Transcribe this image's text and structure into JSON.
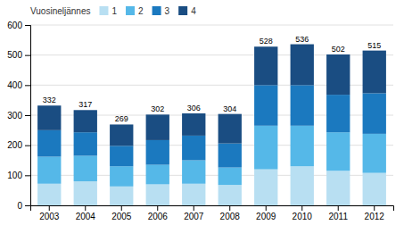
{
  "chart_data": {
    "type": "bar",
    "stacked": true,
    "categories": [
      "2003",
      "2004",
      "2005",
      "2006",
      "2007",
      "2008",
      "2009",
      "2010",
      "2011",
      "2012"
    ],
    "series": [
      {
        "name": "1",
        "color": "#b8dff2",
        "values": [
          72,
          80,
          63,
          70,
          72,
          68,
          120,
          130,
          115,
          108
        ]
      },
      {
        "name": "2",
        "color": "#55b8e8",
        "values": [
          90,
          85,
          67,
          65,
          78,
          58,
          145,
          135,
          128,
          130
        ]
      },
      {
        "name": "3",
        "color": "#1b79bf",
        "values": [
          88,
          78,
          68,
          82,
          82,
          80,
          135,
          135,
          125,
          135
        ]
      },
      {
        "name": "4",
        "color": "#1a4d82",
        "values": [
          82,
          74,
          71,
          85,
          74,
          98,
          128,
          136,
          134,
          142
        ]
      }
    ],
    "totals": [
      332,
      317,
      269,
      302,
      306,
      304,
      528,
      536,
      502,
      515
    ],
    "legend_title": "Vuosineljännes",
    "legend": "upper left",
    "ylim": [
      0,
      600
    ],
    "yticks": [
      0,
      100,
      200,
      300,
      400,
      500,
      600
    ],
    "grid": true
  }
}
